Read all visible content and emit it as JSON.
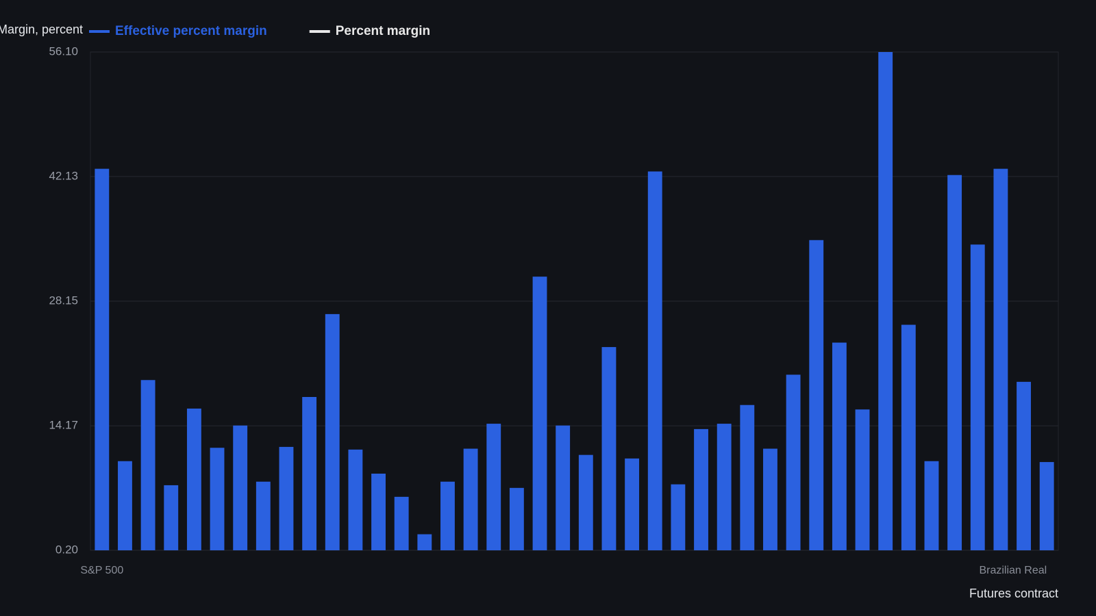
{
  "chart_data": {
    "type": "bar",
    "y_label": "Margin, percent",
    "x_label": "Futures contract",
    "categories": [
      "S&P 500",
      null,
      null,
      null,
      null,
      null,
      null,
      null,
      null,
      null,
      null,
      null,
      null,
      null,
      null,
      null,
      null,
      null,
      null,
      null,
      null,
      null,
      null,
      null,
      null,
      null,
      null,
      null,
      null,
      null,
      null,
      null,
      null,
      null,
      null,
      null,
      null,
      null,
      null,
      null,
      null,
      "Brazilian Real"
    ],
    "series": [
      {
        "name": "Effective percent margin",
        "color": "#2b61e0",
        "values": [
          43.0,
          10.2,
          19.3,
          7.5,
          16.1,
          11.7,
          14.2,
          7.9,
          11.8,
          17.4,
          26.7,
          11.5,
          8.8,
          6.2,
          2.0,
          7.9,
          11.6,
          14.4,
          7.2,
          30.9,
          14.2,
          10.9,
          23.0,
          10.5,
          42.7,
          7.6,
          13.8,
          14.4,
          16.5,
          11.6,
          19.9,
          35.0,
          23.5,
          16.0,
          56.1,
          25.5,
          10.2,
          42.3,
          34.5,
          43.0,
          19.1,
          10.1
        ]
      },
      {
        "name": "Percent margin",
        "color": "#e8e8e8"
      }
    ],
    "ylim": [
      0.2,
      56.1
    ],
    "yticks": [
      {
        "value": 0.2,
        "label": "0.20"
      },
      14.17,
      28.15,
      42.13,
      {
        "value": 56.1,
        "label": "56.10"
      }
    ],
    "grid": true
  }
}
